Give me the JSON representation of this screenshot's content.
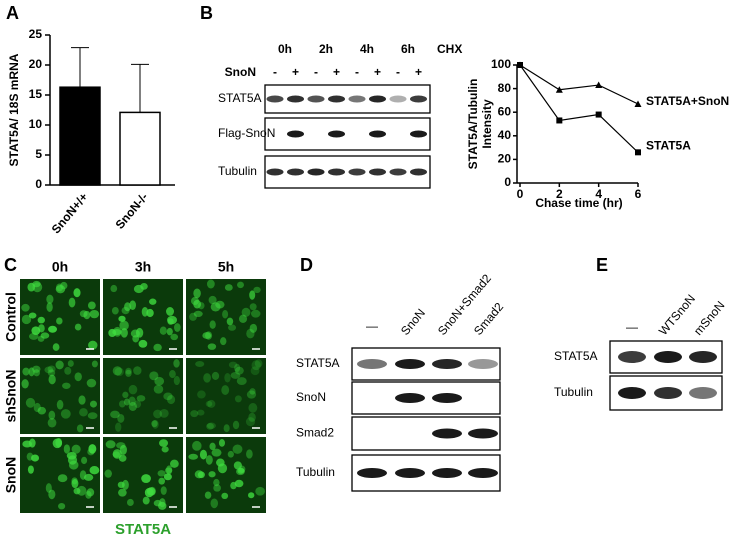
{
  "panel_labels": [
    "A",
    "B",
    "C",
    "D",
    "E"
  ],
  "chart_data": [
    {
      "type": "bar",
      "ylabel": "STAT5A/ 18S mRNA",
      "categories": [
        "SnoN+/+",
        "SnoN-/-"
      ],
      "values": [
        16.3,
        12.1
      ],
      "errors": [
        6.6,
        8.0
      ],
      "colors": [
        "#000000",
        "#ffffff"
      ],
      "ylim": [
        0,
        25
      ],
      "yticks": [
        0,
        5,
        10,
        15,
        20,
        25
      ]
    },
    {
      "type": "line",
      "ylabel": [
        "STAT5A/Tubulin",
        "Intensity"
      ],
      "xlabel": "Chase time (hr)",
      "x": [
        0,
        2,
        4,
        6
      ],
      "xlim": [
        0,
        6
      ],
      "xticks": [
        0,
        2,
        4,
        6
      ],
      "ylim": [
        0,
        100
      ],
      "yticks": [
        0,
        20,
        40,
        60,
        80,
        100
      ],
      "series": [
        {
          "name": "STAT5A+SnoN",
          "color": "#000000",
          "marker": "triangle",
          "values": [
            100,
            79,
            83,
            67
          ]
        },
        {
          "name": "STAT5A",
          "color": "#000000",
          "marker": "square",
          "values": [
            100,
            53,
            58,
            26
          ]
        }
      ]
    }
  ],
  "blot_b": {
    "timepoints": [
      "0h",
      "2h",
      "4h",
      "6h"
    ],
    "treatment": "CHX",
    "condition": "SnoN",
    "signs": [
      "-",
      "+",
      "-",
      "+",
      "-",
      "+",
      "-",
      "+"
    ],
    "rows": [
      "STAT5A",
      "Flag-SnoN",
      "Tubulin"
    ]
  },
  "panel_c": {
    "columns": [
      "0h",
      "3h",
      "5h"
    ],
    "rows": [
      "Control",
      "shSnoN",
      "SnoN"
    ],
    "stain": "STAT5A"
  },
  "blot_d": {
    "lanes": [
      "—",
      "SnoN",
      "SnoN+Smad2",
      "Smad2"
    ],
    "rows": [
      "STAT5A",
      "SnoN",
      "Smad2",
      "Tubulin"
    ]
  },
  "blot_e": {
    "lanes": [
      "—",
      "WTSnoN",
      "mSnoN"
    ],
    "rows": [
      "STAT5A",
      "Tubulin"
    ]
  }
}
